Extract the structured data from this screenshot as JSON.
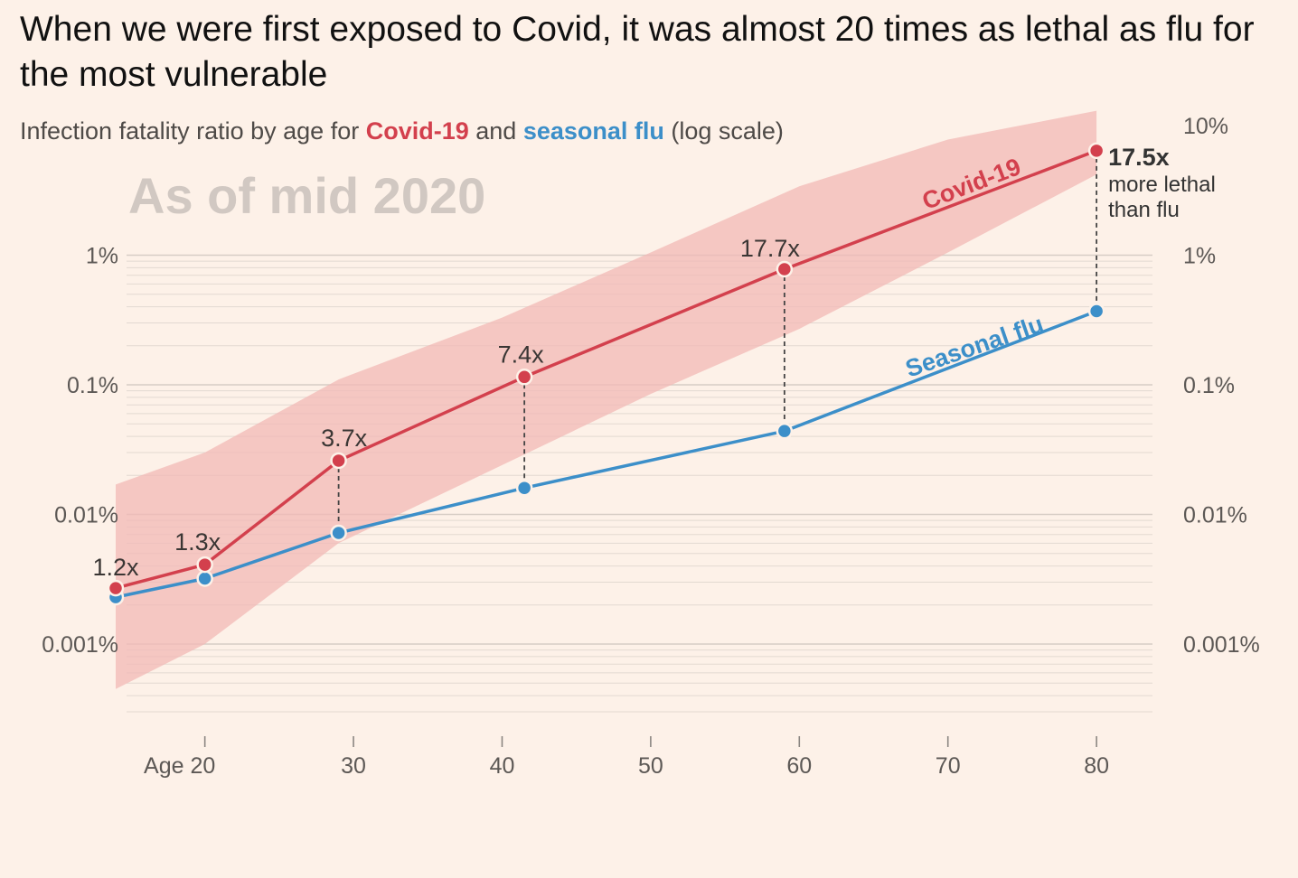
{
  "title": "When we were first exposed to Covid, it was almost 20 times as lethal as flu for the most vulnerable",
  "subtitle": {
    "prefix": "Infection fatality ratio by age for ",
    "covid": "Covid-19",
    "middle": " and ",
    "flu": "seasonal flu",
    "suffix": " (log scale)"
  },
  "watermark": "As of mid 2020",
  "colors": {
    "background": "#fdf1e8",
    "covid": "#d3404d",
    "flu": "#3c8fc9",
    "band": "#f2b8b5",
    "grid": "#e3d9d1",
    "axis_text": "#5c5855"
  },
  "chart_data": {
    "type": "line",
    "y_scale": "log",
    "ylim": [
      0.0002,
      10
    ],
    "xlim": [
      14,
      82
    ],
    "x_ticks": [
      {
        "value": 20,
        "label": "Age 20"
      },
      {
        "value": 30,
        "label": "30"
      },
      {
        "value": 40,
        "label": "40"
      },
      {
        "value": 50,
        "label": "50"
      },
      {
        "value": 60,
        "label": "60"
      },
      {
        "value": 70,
        "label": "70"
      },
      {
        "value": 80,
        "label": "80"
      }
    ],
    "y_ticks_left": [
      {
        "value": 1,
        "label": "1%"
      },
      {
        "value": 0.1,
        "label": "0.1%"
      },
      {
        "value": 0.01,
        "label": "0.01%"
      },
      {
        "value": 0.001,
        "label": "0.001%"
      }
    ],
    "y_ticks_right": [
      {
        "value": 10,
        "label": "10%"
      },
      {
        "value": 1,
        "label": "1%"
      },
      {
        "value": 0.1,
        "label": "0.1%"
      },
      {
        "value": 0.01,
        "label": "0.01%"
      },
      {
        "value": 0.001,
        "label": "0.001%"
      }
    ],
    "series": [
      {
        "name": "Covid-19",
        "label": "Covid-19",
        "x": [
          14,
          20,
          29,
          41.5,
          59,
          80
        ],
        "y": [
          0.0027,
          0.0041,
          0.026,
          0.115,
          0.78,
          6.4
        ]
      },
      {
        "name": "Seasonal flu",
        "label": "Seasonal flu",
        "x": [
          14,
          20,
          29,
          41.5,
          59,
          80
        ],
        "y": [
          0.0023,
          0.0032,
          0.0072,
          0.016,
          0.044,
          0.37
        ]
      }
    ],
    "uncertainty_band": {
      "series": "Covid-19",
      "x": [
        14,
        20,
        29,
        40,
        50,
        60,
        70,
        80
      ],
      "upper": [
        0.017,
        0.03,
        0.11,
        0.33,
        1.05,
        3.4,
        7.8,
        13
      ],
      "lower": [
        0.00045,
        0.001,
        0.006,
        0.024,
        0.085,
        0.27,
        1.05,
        4.2
      ]
    },
    "annotations": [
      {
        "x": 14,
        "label": "1.2x"
      },
      {
        "x": 20,
        "label": "1.3x"
      },
      {
        "x": 29,
        "label": "3.7x"
      },
      {
        "x": 41.5,
        "label": "7.4x"
      },
      {
        "x": 59,
        "label": "17.7x"
      },
      {
        "x": 80,
        "label": "17.5x",
        "note_line1": "more lethal",
        "note_line2": "than flu"
      }
    ]
  }
}
